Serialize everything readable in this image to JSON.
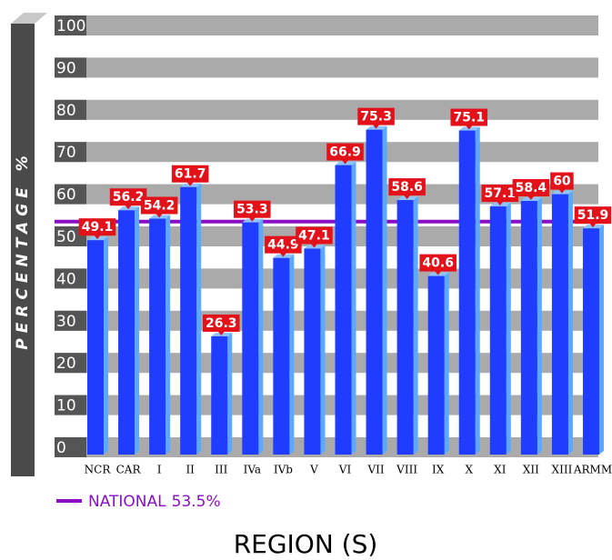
{
  "chart_data": {
    "type": "bar",
    "y_label": "PERCENTAGE %",
    "x_label": "REGION (S)",
    "categories": [
      "NCR",
      "CAR",
      "I",
      "II",
      "III",
      "IVa",
      "IVb",
      "V",
      "VI",
      "VII",
      "VIII",
      "IX",
      "X",
      "XI",
      "XII",
      "XIII",
      "ARMM"
    ],
    "values": [
      49.1,
      56.2,
      54.2,
      61.7,
      26.3,
      53.3,
      44.9,
      47.1,
      66.9,
      75.3,
      58.6,
      40.6,
      75.1,
      57.1,
      58.4,
      60,
      51.9
    ],
    "color": "#1f3cff",
    "ylim": [
      0,
      100
    ],
    "yticks": [
      0,
      10,
      20,
      30,
      40,
      50,
      60,
      70,
      80,
      90,
      100
    ],
    "grid": true,
    "reference_line": {
      "name": "NATIONAL",
      "value": 53.5,
      "label": "53.5%",
      "color": "#8a0fc4"
    }
  }
}
